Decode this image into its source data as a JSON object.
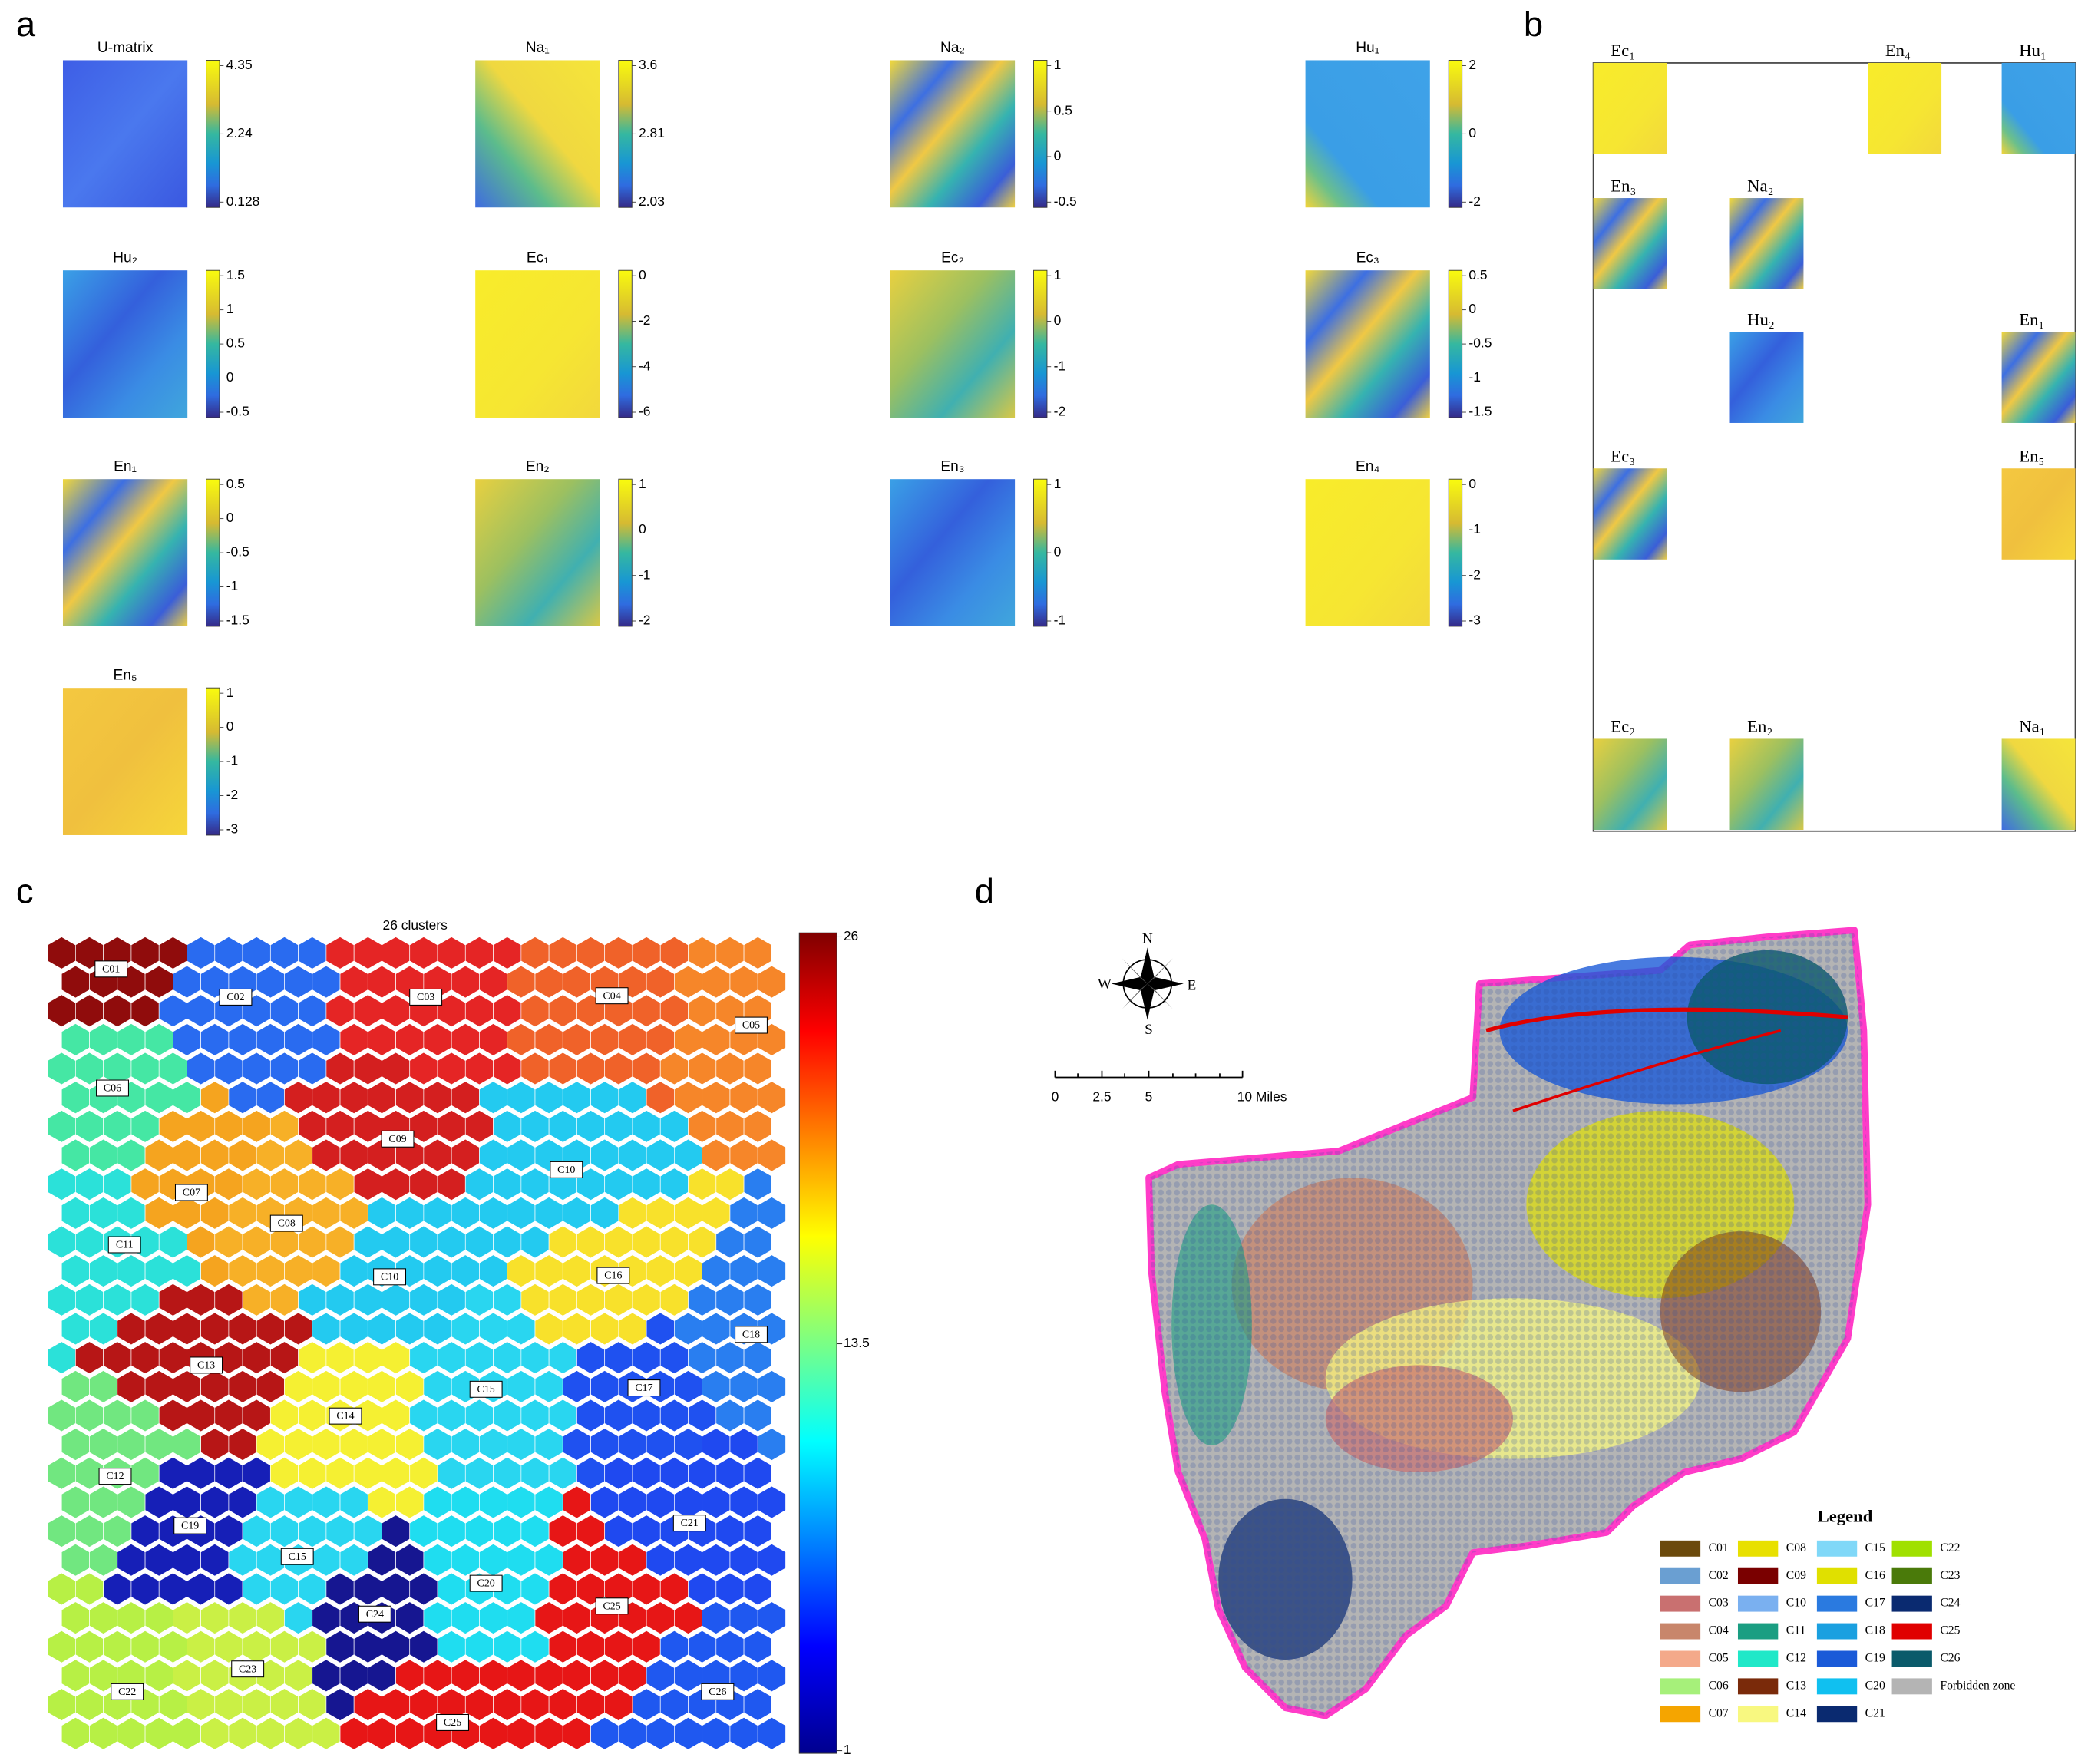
{
  "panel_a": {
    "label": "a",
    "planes": [
      {
        "title": "U-matrix",
        "ticks": [
          "4.35",
          "2.24",
          "0.128"
        ]
      },
      {
        "title": "Na₁",
        "ticks": [
          "3.6",
          "2.81",
          "2.03"
        ]
      },
      {
        "title": "Na₂",
        "ticks": [
          "1",
          "0.5",
          "0",
          "-0.5"
        ]
      },
      {
        "title": "Hu₁",
        "ticks": [
          "2",
          "0",
          "-2"
        ]
      },
      {
        "title": "Hu₂",
        "ticks": [
          "1.5",
          "1",
          "0.5",
          "0",
          "-0.5"
        ]
      },
      {
        "title": "Ec₁",
        "ticks": [
          "0",
          "-2",
          "-4",
          "-6"
        ]
      },
      {
        "title": "Ec₂",
        "ticks": [
          "1",
          "0",
          "-1",
          "-2"
        ]
      },
      {
        "title": "Ec₃",
        "ticks": [
          "0.5",
          "0",
          "-0.5",
          "-1",
          "-1.5"
        ]
      },
      {
        "title": "En₁",
        "ticks": [
          "0.5",
          "0",
          "-0.5",
          "-1",
          "-1.5"
        ]
      },
      {
        "title": "En₂",
        "ticks": [
          "1",
          "0",
          "-1",
          "-2"
        ]
      },
      {
        "title": "En₃",
        "ticks": [
          "1",
          "0",
          "-1"
        ]
      },
      {
        "title": "En₄",
        "ticks": [
          "0",
          "-1",
          "-2",
          "-3"
        ]
      },
      {
        "title": "En₅",
        "ticks": [
          "1",
          "0",
          "-1",
          "-2",
          "-3"
        ]
      }
    ]
  },
  "panel_b": {
    "label": "b",
    "planes": [
      "Ec₁",
      "En₄",
      "Hu₁",
      "En₃",
      "Na₂",
      "Hu₂",
      "En₁",
      "Ec₃",
      "En₅",
      "Ec₂",
      "En₂",
      "Na₁"
    ]
  },
  "panel_c": {
    "label": "c",
    "title": "26 clusters",
    "colorbar_ticks": [
      "26",
      "13.5",
      "1"
    ],
    "clusters": [
      {
        "label": "C01",
        "color": "#8b0000"
      },
      {
        "label": "C02",
        "color": "#1e64f0"
      },
      {
        "label": "C03",
        "color": "#e41a1a"
      },
      {
        "label": "C04",
        "color": "#f05a1e"
      },
      {
        "label": "C05",
        "color": "#f6801e"
      },
      {
        "label": "C06",
        "color": "#3ce6a0"
      },
      {
        "label": "C07",
        "color": "#f5a014"
      },
      {
        "label": "C08",
        "color": "#f7ac1c"
      },
      {
        "label": "C09",
        "color": "#d21414"
      },
      {
        "label": "C10",
        "color": "#18c8f0"
      },
      {
        "label": "C11",
        "color": "#20e0d8"
      },
      {
        "label": "C12",
        "color": "#6ae67a"
      },
      {
        "label": "C13",
        "color": "#b40a0a"
      },
      {
        "label": "C14",
        "color": "#f5f028"
      },
      {
        "label": "C15",
        "color": "#1ed4f0"
      },
      {
        "label": "C16",
        "color": "#f8e020"
      },
      {
        "label": "C17",
        "color": "#1448f0"
      },
      {
        "label": "C18",
        "color": "#1e78f0"
      },
      {
        "label": "C19",
        "color": "#0a14b4"
      },
      {
        "label": "C20",
        "color": "#14dcf0"
      },
      {
        "label": "C21",
        "color": "#1440f0"
      },
      {
        "label": "C22",
        "color": "#b4f03c"
      },
      {
        "label": "C23",
        "color": "#c8f03c"
      },
      {
        "label": "C24",
        "color": "#0a0a8c"
      },
      {
        "label": "C25",
        "color": "#e60a0a"
      },
      {
        "label": "C26",
        "color": "#1450f0"
      },
      {
        "label": "C10",
        "color": "#18c8f0"
      },
      {
        "label": "C15",
        "color": "#1ed4f0"
      },
      {
        "label": "C25",
        "color": "#e60a0a"
      }
    ]
  },
  "panel_d": {
    "label": "d",
    "compass": [
      "N",
      "W",
      "E",
      "S"
    ],
    "scale_labels": [
      "0",
      "2.5",
      "5",
      "10 Miles"
    ],
    "legend": {
      "title": "Legend",
      "items": [
        {
          "label": "C01",
          "color": "#6b4a0c"
        },
        {
          "label": "C02",
          "color": "#6a9fd2"
        },
        {
          "label": "C03",
          "color": "#c97070"
        },
        {
          "label": "C04",
          "color": "#c8866b"
        },
        {
          "label": "C05",
          "color": "#f4a98a"
        },
        {
          "label": "C06",
          "color": "#a6f07a"
        },
        {
          "label": "C07",
          "color": "#f5a500"
        },
        {
          "label": "C08",
          "color": "#e8e000"
        },
        {
          "label": "C09",
          "color": "#7a0000"
        },
        {
          "label": "C10",
          "color": "#7ab0f0"
        },
        {
          "label": "C11",
          "color": "#1a9e82"
        },
        {
          "label": "C12",
          "color": "#20e8c8"
        },
        {
          "label": "C13",
          "color": "#7a2a0a"
        },
        {
          "label": "C14",
          "color": "#f8f880"
        },
        {
          "label": "C15",
          "color": "#80d8f8"
        },
        {
          "label": "C16",
          "color": "#e0e000"
        },
        {
          "label": "C17",
          "color": "#2a7ae0"
        },
        {
          "label": "C18",
          "color": "#1aa0e0"
        },
        {
          "label": "C19",
          "color": "#1a5ad8"
        },
        {
          "label": "C20",
          "color": "#10c0f0"
        },
        {
          "label": "C21",
          "color": "#0a2a70"
        },
        {
          "label": "C22",
          "color": "#a0e000"
        },
        {
          "label": "C23",
          "color": "#4a7a0a"
        },
        {
          "label": "C24",
          "color": "#0a2a70"
        },
        {
          "label": "C25",
          "color": "#e00000"
        },
        {
          "label": "C26",
          "color": "#0a5a6a"
        },
        {
          "label": "Forbidden zone",
          "color": "#b4b4b4"
        }
      ]
    }
  }
}
